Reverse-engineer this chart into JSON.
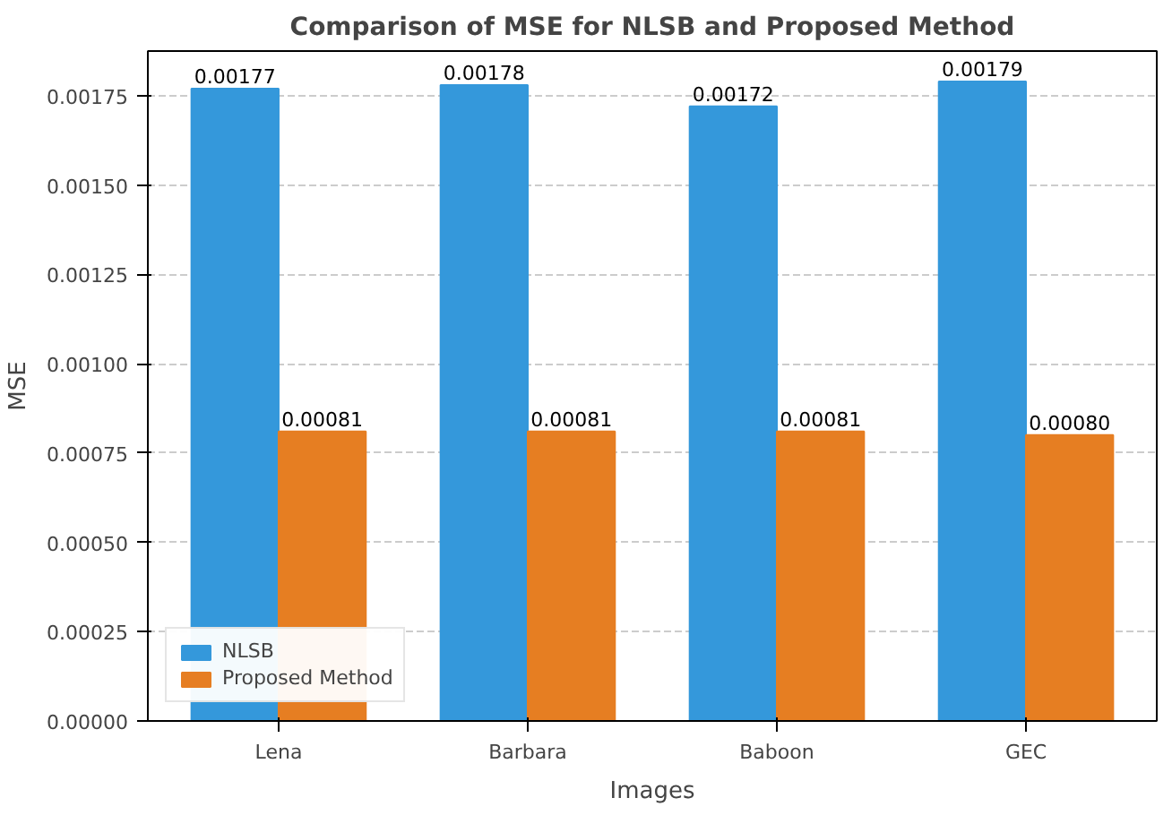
{
  "chart_data": {
    "type": "bar",
    "title": "Comparison of MSE for NLSB and Proposed Method",
    "xlabel": "Images",
    "ylabel": "MSE",
    "categories": [
      "Lena",
      "Barbara",
      "Baboon",
      "GEC"
    ],
    "series": [
      {
        "name": "NLSB",
        "color": "#3498db",
        "values": [
          0.00177,
          0.00178,
          0.00172,
          0.00179
        ],
        "value_labels": [
          "0.00177",
          "0.00178",
          "0.00172",
          "0.00179"
        ]
      },
      {
        "name": "Proposed Method",
        "color": "#e67e22",
        "values": [
          0.00081,
          0.00081,
          0.00081,
          0.0008
        ],
        "value_labels": [
          "0.00081",
          "0.00081",
          "0.00081",
          "0.00080"
        ]
      }
    ],
    "ylim": [
      0,
      0.001875
    ],
    "yticks": [
      {
        "value": 0,
        "label": "0.00000"
      },
      {
        "value": 0.00025,
        "label": "0.00025"
      },
      {
        "value": 0.0005,
        "label": "0.00050"
      },
      {
        "value": 0.00075,
        "label": "0.00075"
      },
      {
        "value": 0.001,
        "label": "0.00100"
      },
      {
        "value": 0.00125,
        "label": "0.00125"
      },
      {
        "value": 0.0015,
        "label": "0.00150"
      },
      {
        "value": 0.00175,
        "label": "0.00175"
      }
    ],
    "grid": "y",
    "legend": "bottom left"
  }
}
